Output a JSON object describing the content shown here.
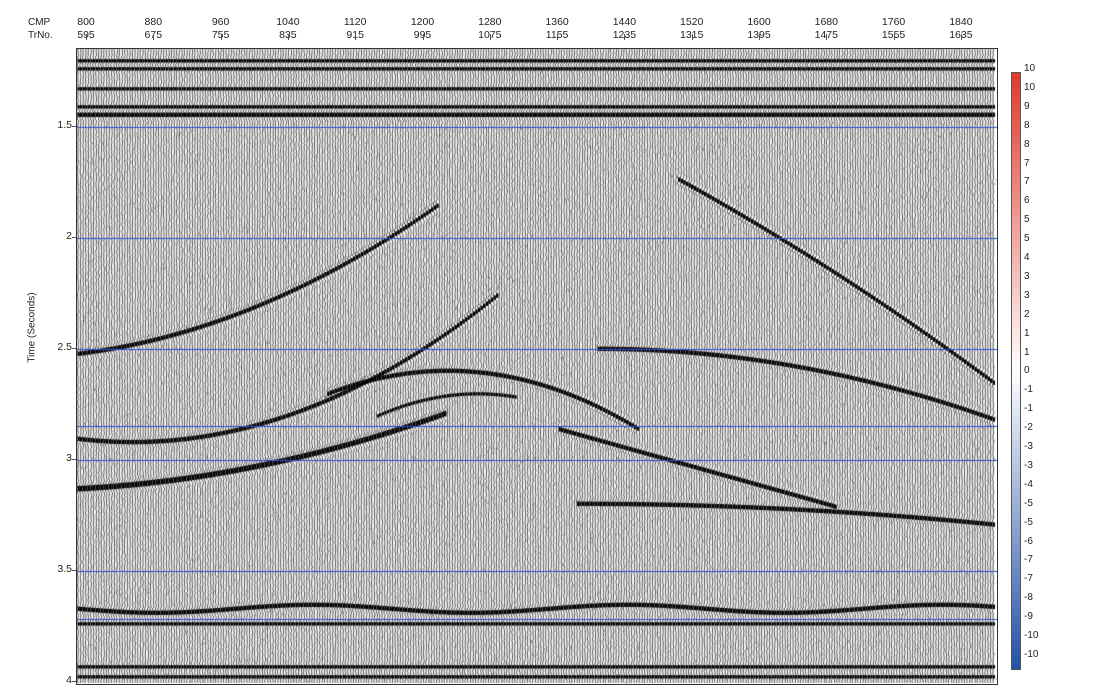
{
  "header": {
    "row1_label": "CMP",
    "row2_label": "TrNo.",
    "cmp_values": [
      "800",
      "880",
      "960",
      "1040",
      "1120",
      "1200",
      "1280",
      "1360",
      "1440",
      "1520",
      "1600",
      "1680",
      "1760",
      "1840"
    ],
    "trno_values": [
      "595",
      "675",
      "755",
      "835",
      "915",
      "995",
      "1075",
      "1155",
      "1235",
      "1315",
      "1395",
      "1475",
      "1555",
      "1635"
    ]
  },
  "y_axis": {
    "title": "Time (Seconds)",
    "ticks": [
      "1.5",
      "2",
      "2.5",
      "3",
      "3.5",
      "4"
    ],
    "range_seconds": [
      1.15,
      4.02
    ]
  },
  "colorbar": {
    "labels": [
      "10",
      "10",
      "9",
      "8",
      "8",
      "7",
      "7",
      "6",
      "5",
      "5",
      "4",
      "3",
      "3",
      "2",
      "1",
      "1",
      "0",
      "-1",
      "-1",
      "-2",
      "-3",
      "-3",
      "-4",
      "-5",
      "-5",
      "-6",
      "-7",
      "-7",
      "-8",
      "-9",
      "-10",
      "-10"
    ],
    "positive_color": "#e03a2c",
    "zero_color": "#ffffff",
    "negative_color": "#2452a8"
  },
  "seismic": {
    "colors": {
      "ink": "#000000",
      "paper": "#ffffff",
      "grid": "#2a4fd6"
    }
  }
}
